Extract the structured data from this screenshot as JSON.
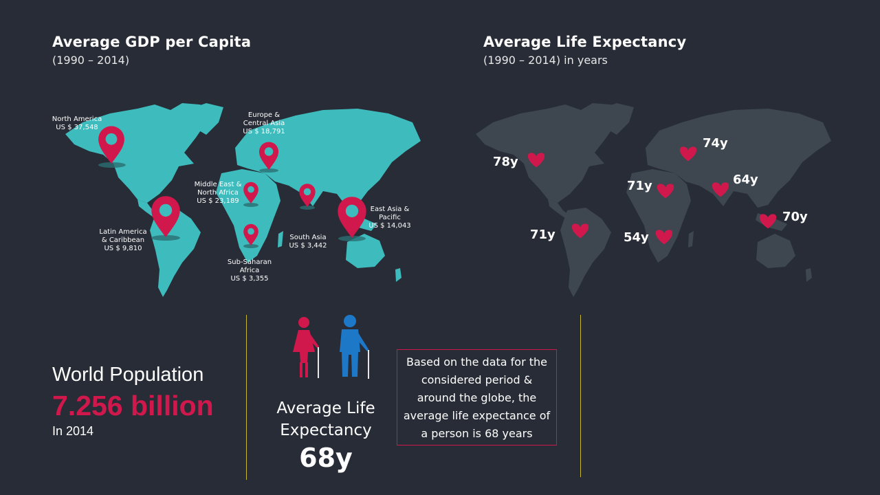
{
  "colors": {
    "map_teal": "#3ebcbd",
    "map_dark": "#3e4750",
    "accent": "#d1184c",
    "divider": "#c8b832",
    "figure_blue": "#1e78c8"
  },
  "gdp": {
    "title": "Average GDP per Capita",
    "subtitle": "(1990 – 2014)",
    "regions": [
      {
        "name": "North America",
        "value": "US $ 37,548"
      },
      {
        "name": "Europe & Central Asia",
        "value": "US $ 18,791"
      },
      {
        "name": "Middle East & North Africa",
        "value": "US $ 23,189"
      },
      {
        "name": "East Asia & Pacific",
        "value": "US $ 14,043"
      },
      {
        "name": "Latin America & Caribbean",
        "value": "US $ 9,810"
      },
      {
        "name": "South Asia",
        "value": "US $ 3,442"
      },
      {
        "name": "Sub-Saharan Africa",
        "value": "US $ 3,355"
      }
    ]
  },
  "life": {
    "title": "Average Life Expectancy",
    "subtitle": "(1990 – 2014) in years",
    "values": [
      "78y",
      "74y",
      "71y",
      "64y",
      "70y",
      "71y",
      "54y"
    ]
  },
  "population": {
    "label": "World Population",
    "value": "7.256 billion",
    "year": "In 2014"
  },
  "average": {
    "label": "Average Life Expectancy",
    "value": "68y",
    "icons": [
      "elderly-woman-icon",
      "elderly-man-icon"
    ]
  },
  "note": "Based on the data for the considered period & around the globe, the average life expectance of a person is 68 years"
}
